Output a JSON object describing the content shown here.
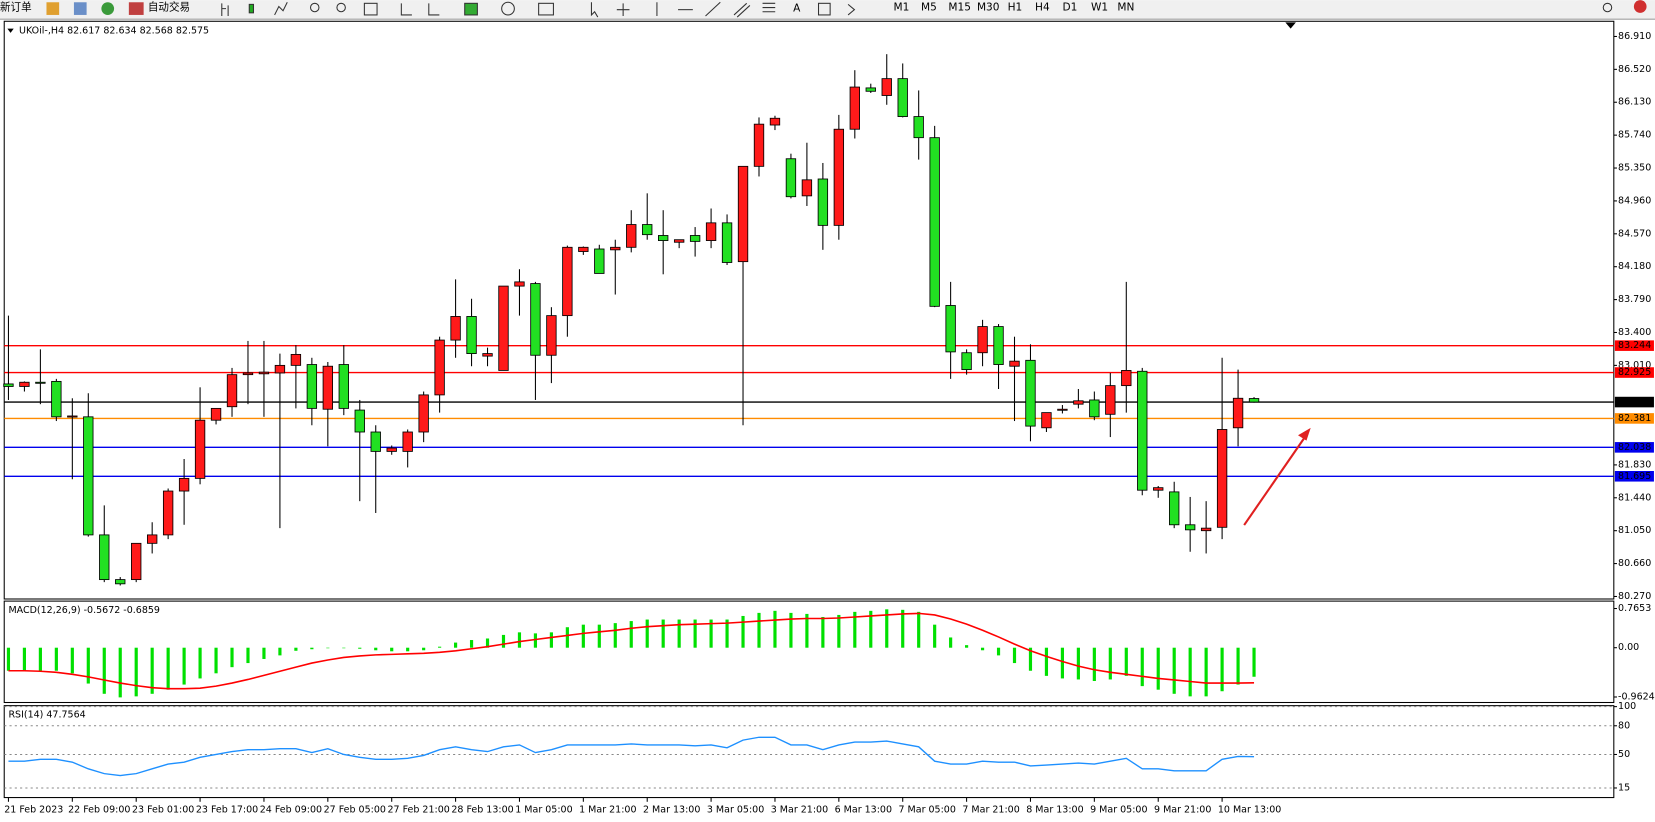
{
  "toolbar": {
    "new_order": "新订单",
    "auto_trading": "自动交易",
    "text_tool": "A",
    "periods": [
      "M1",
      "M5",
      "M15",
      "M30",
      "H1",
      "H4",
      "D1",
      "W1",
      "MN"
    ]
  },
  "chart_data": [
    {
      "type": "candlestick",
      "title": "UKOil-,H4 82.617 82.634 82.568 82.575",
      "categories": [
        "21 Feb 2023",
        null,
        null,
        null,
        "22 Feb 09:00",
        null,
        null,
        null,
        "23 Feb 01:00",
        null,
        null,
        null,
        "23 Feb 17:00",
        null,
        null,
        null,
        "24 Feb 09:00",
        null,
        null,
        null,
        "27 Feb 05:00",
        null,
        null,
        null,
        "27 Feb 21:00",
        null,
        null,
        null,
        "28 Feb 13:00",
        null,
        null,
        null,
        "1 Mar 05:00",
        null,
        null,
        null,
        "1 Mar 21:00",
        null,
        null,
        null,
        "2 Mar 13:00",
        null,
        null,
        null,
        "3 Mar 05:00",
        null,
        null,
        null,
        "3 Mar 21:00",
        null,
        null,
        null,
        "6 Mar 13:00",
        null,
        null,
        null,
        "7 Mar 05:00",
        null,
        null,
        null,
        "7 Mar 21:00",
        null,
        null,
        null,
        "8 Mar 13:00",
        null,
        null,
        null,
        "9 Mar 05:00",
        null,
        null,
        null,
        "9 Mar 21:00",
        null,
        null,
        null,
        "10 Mar 13:00",
        null,
        null
      ],
      "open": [
        82.79,
        82.76,
        82.81,
        82.82,
        82.4,
        82.4,
        81.0,
        80.47,
        80.47,
        80.9,
        81.0,
        81.52,
        81.67,
        82.36,
        82.52,
        82.9,
        82.91,
        82.92,
        83.01,
        83.02,
        82.49,
        83.02,
        82.48,
        82.22,
        81.99,
        81.99,
        82.22,
        82.66,
        83.31,
        83.59,
        83.12,
        82.95,
        83.95,
        83.98,
        83.13,
        83.6,
        84.36,
        84.39,
        84.38,
        84.41,
        84.68,
        84.55,
        84.47,
        84.55,
        84.49,
        84.7,
        84.24,
        85.37,
        85.86,
        85.46,
        85.02,
        85.22,
        84.67,
        85.81,
        86.3,
        86.21,
        86.41,
        85.96,
        85.71,
        83.72,
        83.16,
        83.16,
        83.47,
        83.0,
        83.07,
        82.27,
        82.48,
        82.55,
        82.6,
        82.43,
        82.77,
        82.94,
        81.53,
        81.51,
        81.12,
        81.05,
        81.09,
        82.27,
        82.617
      ],
      "high": [
        83.6,
        82.82,
        83.2,
        82.85,
        82.62,
        82.68,
        81.35,
        80.5,
        80.9,
        81.15,
        81.55,
        81.9,
        82.75,
        82.5,
        82.98,
        83.3,
        83.3,
        83.15,
        83.25,
        83.1,
        83.05,
        83.25,
        82.6,
        82.3,
        82.06,
        82.25,
        82.7,
        83.35,
        84.03,
        83.8,
        83.22,
        83.95,
        84.15,
        84.0,
        83.7,
        84.43,
        84.42,
        84.44,
        84.5,
        84.85,
        85.05,
        84.85,
        84.5,
        84.65,
        84.87,
        84.8,
        85.37,
        85.95,
        85.97,
        85.52,
        85.65,
        85.41,
        85.98,
        86.51,
        86.35,
        86.7,
        86.59,
        86.27,
        85.85,
        84.0,
        83.2,
        83.55,
        83.5,
        83.35,
        83.26,
        82.45,
        82.54,
        82.73,
        82.7,
        82.92,
        84.0,
        82.98,
        81.58,
        81.63,
        81.45,
        81.4,
        83.1,
        82.96,
        82.634
      ],
      "low": [
        82.6,
        82.7,
        82.55,
        82.35,
        81.66,
        80.98,
        80.44,
        80.4,
        80.44,
        80.78,
        80.95,
        81.12,
        81.6,
        82.31,
        82.4,
        82.55,
        82.4,
        81.08,
        82.5,
        82.3,
        82.05,
        82.42,
        81.4,
        81.26,
        81.95,
        81.8,
        82.1,
        82.45,
        83.1,
        83.0,
        83.0,
        82.95,
        83.6,
        82.6,
        82.8,
        83.35,
        84.32,
        84.1,
        83.85,
        84.35,
        84.5,
        84.09,
        84.4,
        84.3,
        84.4,
        84.2,
        82.3,
        85.25,
        85.8,
        84.99,
        84.9,
        84.38,
        84.5,
        85.7,
        86.24,
        86.1,
        85.95,
        85.45,
        83.7,
        82.85,
        82.9,
        83.0,
        82.73,
        82.35,
        82.11,
        82.22,
        82.44,
        82.5,
        82.36,
        82.16,
        82.45,
        81.47,
        81.44,
        81.08,
        80.8,
        80.78,
        80.95,
        82.05,
        82.568
      ],
      "close": [
        82.76,
        82.81,
        82.8,
        82.4,
        82.41,
        81.0,
        80.47,
        80.42,
        80.9,
        81.0,
        81.52,
        81.67,
        82.36,
        82.5,
        82.9,
        82.92,
        82.93,
        83.01,
        83.14,
        82.5,
        83.0,
        82.5,
        82.22,
        81.99,
        82.03,
        82.22,
        82.66,
        83.31,
        83.59,
        83.15,
        83.15,
        83.95,
        84.0,
        83.13,
        83.6,
        84.41,
        84.41,
        84.1,
        84.41,
        84.68,
        84.56,
        84.49,
        84.5,
        84.48,
        84.7,
        84.23,
        85.37,
        85.87,
        85.94,
        85.01,
        85.21,
        84.67,
        85.81,
        86.31,
        86.26,
        86.41,
        85.96,
        85.71,
        83.71,
        83.17,
        82.96,
        83.47,
        83.02,
        83.06,
        82.29,
        82.45,
        82.49,
        82.59,
        82.4,
        82.77,
        82.95,
        81.53,
        81.56,
        81.12,
        81.06,
        81.08,
        82.25,
        82.62,
        82.575
      ],
      "up_color": "#ff1a1a",
      "down_color": "#22e022",
      "ylim": [
        80.24,
        87.09
      ],
      "yticks": [
        {
          "value": 86.91,
          "label": "86.910"
        },
        {
          "value": 86.52,
          "label": "86.520"
        },
        {
          "value": 86.13,
          "label": "86.130"
        },
        {
          "value": 85.74,
          "label": "85.740"
        },
        {
          "value": 85.35,
          "label": "85.350"
        },
        {
          "value": 84.96,
          "label": "84.960"
        },
        {
          "value": 84.57,
          "label": "84.570"
        },
        {
          "value": 84.18,
          "label": "84.180"
        },
        {
          "value": 83.79,
          "label": "83.790"
        },
        {
          "value": 83.4,
          "label": "83.400"
        },
        {
          "value": 83.01,
          "label": "83.010"
        },
        {
          "value": 81.83,
          "label": "81.830"
        },
        {
          "value": 81.44,
          "label": "81.440"
        },
        {
          "value": 81.05,
          "label": "81.050"
        },
        {
          "value": 80.66,
          "label": "80.660"
        },
        {
          "value": 80.27,
          "label": "80.270"
        }
      ],
      "levels": [
        {
          "value": 83.244,
          "color": "#ff0000"
        },
        {
          "value": 82.925,
          "color": "#ff0000"
        },
        {
          "value": 82.575,
          "color": "#000000"
        },
        {
          "value": 82.381,
          "color": "#ff8c00"
        },
        {
          "value": 82.038,
          "color": "#0000ee"
        },
        {
          "value": 81.695,
          "color": "#0000ee"
        }
      ]
    },
    {
      "type": "macd",
      "title": "MACD(12,26,9) -0.5672 -0.6859",
      "ylim": [
        -1.07,
        0.91
      ],
      "yticks": [
        0.7653,
        {
          "value": 0,
          "label": "0.00"
        },
        -0.9624
      ],
      "series": [
        {
          "type": "bar",
          "color": "#00e000",
          "values": [
            -0.45,
            -0.45,
            -0.45,
            -0.45,
            -0.5,
            -0.7,
            -0.9,
            -0.97,
            -0.95,
            -0.9,
            -0.82,
            -0.72,
            -0.6,
            -0.5,
            -0.38,
            -0.3,
            -0.22,
            -0.15,
            -0.06,
            -0.03,
            -0.01,
            0.0,
            -0.02,
            -0.05,
            -0.07,
            -0.07,
            -0.05,
            0.02,
            0.1,
            0.15,
            0.18,
            0.25,
            0.3,
            0.28,
            0.3,
            0.4,
            0.45,
            0.45,
            0.48,
            0.52,
            0.55,
            0.55,
            0.55,
            0.55,
            0.55,
            0.55,
            0.62,
            0.68,
            0.72,
            0.68,
            0.66,
            0.6,
            0.64,
            0.7,
            0.72,
            0.75,
            0.74,
            0.7,
            0.45,
            0.2,
            0.05,
            -0.05,
            -0.15,
            -0.3,
            -0.45,
            -0.55,
            -0.6,
            -0.62,
            -0.65,
            -0.62,
            -0.55,
            -0.75,
            -0.82,
            -0.9,
            -0.95,
            -0.95,
            -0.85,
            -0.72,
            -0.5672
          ]
        },
        {
          "type": "line",
          "color": "#ff0000",
          "values": [
            -0.45,
            -0.45,
            -0.46,
            -0.48,
            -0.52,
            -0.57,
            -0.63,
            -0.69,
            -0.74,
            -0.78,
            -0.8,
            -0.8,
            -0.79,
            -0.75,
            -0.69,
            -0.62,
            -0.54,
            -0.46,
            -0.38,
            -0.3,
            -0.24,
            -0.19,
            -0.16,
            -0.14,
            -0.13,
            -0.12,
            -0.11,
            -0.09,
            -0.06,
            -0.02,
            0.02,
            0.07,
            0.12,
            0.16,
            0.2,
            0.24,
            0.28,
            0.31,
            0.34,
            0.38,
            0.41,
            0.43,
            0.45,
            0.46,
            0.47,
            0.48,
            0.5,
            0.52,
            0.54,
            0.56,
            0.57,
            0.57,
            0.58,
            0.6,
            0.62,
            0.64,
            0.66,
            0.67,
            0.64,
            0.56,
            0.46,
            0.34,
            0.21,
            0.07,
            -0.06,
            -0.17,
            -0.27,
            -0.36,
            -0.43,
            -0.48,
            -0.52,
            -0.56,
            -0.6,
            -0.63,
            -0.66,
            -0.69,
            -0.69,
            -0.69,
            -0.6859
          ]
        }
      ]
    },
    {
      "type": "line",
      "title": "RSI(14) 47.7564",
      "ylim": [
        5,
        101
      ],
      "yticks": [
        100,
        80,
        50,
        15
      ],
      "color": "#1e90ff",
      "values": [
        43,
        43,
        45,
        45,
        42,
        35,
        30,
        28,
        30,
        35,
        40,
        42,
        47,
        50,
        53,
        55,
        55,
        56,
        56,
        52,
        56,
        50,
        47,
        45,
        45,
        46,
        49,
        55,
        58,
        55,
        53,
        58,
        60,
        52,
        55,
        60,
        60,
        60,
        60,
        61,
        60,
        60,
        60,
        59,
        60,
        57,
        65,
        68,
        68,
        60,
        60,
        55,
        60,
        63,
        63,
        64,
        61,
        58,
        43,
        40,
        40,
        43,
        42,
        42,
        38,
        39,
        40,
        41,
        40,
        43,
        46,
        35,
        35,
        33,
        33,
        33,
        45,
        48,
        47.7564
      ]
    }
  ]
}
